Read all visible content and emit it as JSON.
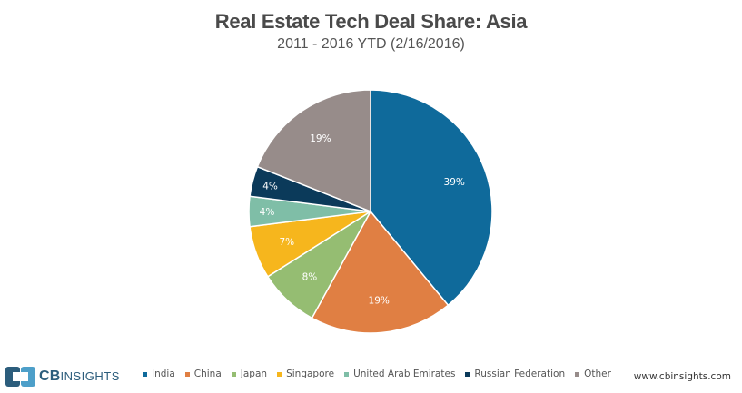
{
  "header": {
    "title": "Real Estate Tech Deal Share: Asia",
    "subtitle": "2011 - 2016 YTD (2/16/2016)"
  },
  "chart_data": {
    "type": "pie",
    "title": "Real Estate Tech Deal Share: Asia",
    "subtitle": "2011 - 2016 YTD (2/16/2016)",
    "categories": [
      "India",
      "China",
      "Japan",
      "Singapore",
      "United Arab Emirates",
      "Russian Federation",
      "Other"
    ],
    "values": [
      39,
      19,
      8,
      7,
      4,
      4,
      19
    ],
    "labels": [
      "39%",
      "19%",
      "8%",
      "7%",
      "4%",
      "4%",
      "19%"
    ],
    "colors": [
      "#0f6a9b",
      "#e07f43",
      "#95bd72",
      "#f6b61d",
      "#7fbea7",
      "#0b3a5a",
      "#978c8a"
    ],
    "start": "12 o'clock",
    "direction": "clockwise",
    "legend_position": "bottom"
  },
  "footer": {
    "logo_bold": "CB",
    "logo_light": "INSIGHTS",
    "website": "www.cbinsights.com"
  }
}
